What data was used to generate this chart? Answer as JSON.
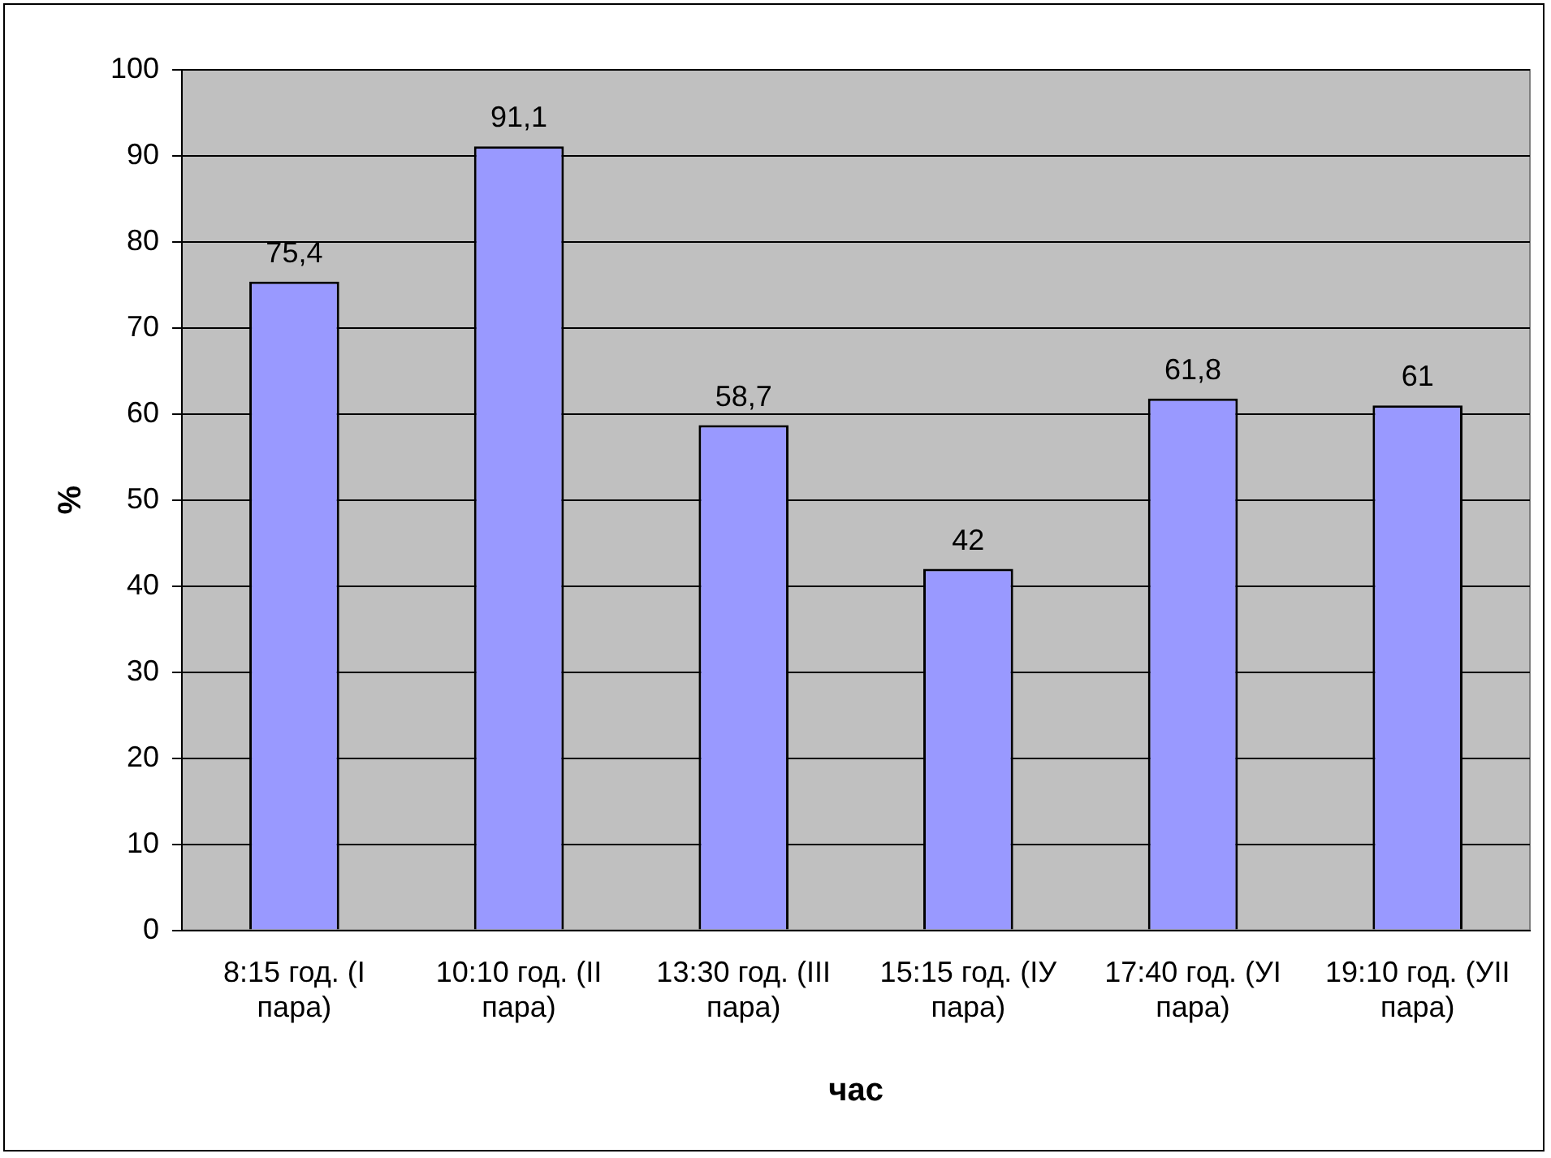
{
  "chart_data": {
    "type": "bar",
    "xlabel": "час",
    "ylabel": "%",
    "categories": [
      "8:15 год. (I пара)",
      "10:10 год. (II пара)",
      "13:30 год. (III пара)",
      "15:15 год. (IУ пара)",
      "17:40 год. (УI пара)",
      "19:10 год. (УII пара)"
    ],
    "values": [
      75.4,
      91.1,
      58.7,
      42,
      61.8,
      61
    ],
    "value_labels": [
      "75,4",
      "91,1",
      "58,7",
      "42",
      "61,8",
      "61"
    ],
    "color": "#9999ff",
    "ylim": [
      0,
      100
    ],
    "yticks": [
      0,
      10,
      20,
      30,
      40,
      50,
      60,
      70,
      80,
      90,
      100
    ],
    "grid": "y",
    "legend": false
  }
}
